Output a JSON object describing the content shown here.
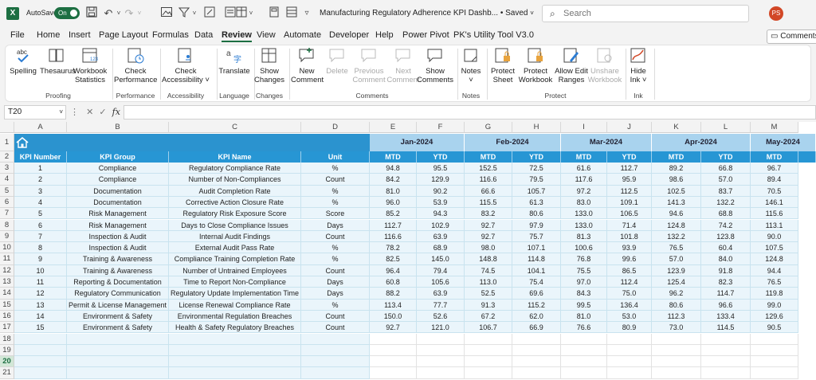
{
  "titlebar": {
    "autosave_label": "AutoSave",
    "autosave_state": "On",
    "doc_title": "Manufacturing Regulatory Adherence KPI Dashb...",
    "saved_state": "• Saved",
    "search_placeholder": "Search",
    "avatar_initials": "PS"
  },
  "menu": {
    "tabs": [
      "File",
      "Home",
      "Insert",
      "Page Layout",
      "Formulas",
      "Data",
      "Review",
      "View",
      "Automate",
      "Developer",
      "Help",
      "Power Pivot",
      "PK's Utility Tool V3.0"
    ],
    "active": "Review",
    "comments_label": "Comments"
  },
  "ribbon": {
    "buttons": {
      "spelling": "Spelling",
      "thesaurus": "Thesaurus",
      "workbook_statistics": [
        "Workbook",
        "Statistics"
      ],
      "check_performance": [
        "Check",
        "Performance"
      ],
      "check_accessibility": [
        "Check",
        "Accessibility ˅"
      ],
      "translate": "Translate",
      "show_changes": [
        "Show",
        "Changes"
      ],
      "new_comment": [
        "New",
        "Comment"
      ],
      "delete": "Delete",
      "previous_comment": [
        "Previous",
        "Comment"
      ],
      "next_comment": [
        "Next",
        "Comment"
      ],
      "show_comments": [
        "Show",
        "Comments"
      ],
      "notes": [
        "Notes",
        "˅"
      ],
      "protect_sheet": [
        "Protect",
        "Sheet"
      ],
      "protect_workbook": [
        "Protect",
        "Workbook"
      ],
      "allow_edit_ranges": [
        "Allow Edit",
        "Ranges"
      ],
      "unshare_workbook": [
        "Unshare",
        "Workbook"
      ],
      "hide_ink": [
        "Hide",
        "Ink ˅"
      ]
    },
    "groups": [
      "Proofing",
      "Performance",
      "Accessibility",
      "Language",
      "Changes",
      "Comments",
      "Notes",
      "Protect",
      "Ink"
    ]
  },
  "formula_bar": {
    "name_box": "T20",
    "fx": "fx",
    "value": ""
  },
  "sheet": {
    "columns": [
      "A",
      "B",
      "C",
      "D",
      "E",
      "F",
      "G",
      "H",
      "I",
      "J",
      "K",
      "L",
      "M"
    ],
    "row_numbers": [
      "1",
      "2",
      "3",
      "4",
      "5",
      "6",
      "7",
      "8",
      "9",
      "10",
      "11",
      "12",
      "13",
      "14",
      "15",
      "16",
      "17",
      "18",
      "19",
      "20",
      "21"
    ],
    "selected_row": "20",
    "months": [
      "Jan-2024",
      "Feb-2024",
      "Mar-2024",
      "Apr-2024",
      "May-2024"
    ],
    "headers": [
      "KPI Number",
      "KPI Group",
      "KPI Name",
      "Unit"
    ],
    "sub_headers": [
      "MTD",
      "YTD"
    ],
    "rows": [
      [
        "1",
        "Compliance",
        "Regulatory Compliance Rate",
        "%",
        "94.8",
        "95.5",
        "152.5",
        "72.5",
        "61.6",
        "112.7",
        "89.2",
        "66.8",
        "96.7"
      ],
      [
        "2",
        "Compliance",
        "Number of Non-Compliances",
        "Count",
        "84.2",
        "129.9",
        "116.6",
        "79.5",
        "117.6",
        "95.9",
        "98.6",
        "57.0",
        "89.4"
      ],
      [
        "3",
        "Documentation",
        "Audit Completion Rate",
        "%",
        "81.0",
        "90.2",
        "66.6",
        "105.7",
        "97.2",
        "112.5",
        "102.5",
        "83.7",
        "70.5"
      ],
      [
        "4",
        "Documentation",
        "Corrective Action Closure Rate",
        "%",
        "96.0",
        "53.9",
        "115.5",
        "61.3",
        "83.0",
        "109.1",
        "141.3",
        "132.2",
        "146.1"
      ],
      [
        "5",
        "Risk Management",
        "Regulatory Risk Exposure Score",
        "Score",
        "85.2",
        "94.3",
        "83.2",
        "80.6",
        "133.0",
        "106.5",
        "94.6",
        "68.8",
        "115.6"
      ],
      [
        "6",
        "Risk Management",
        "Days to Close Compliance Issues",
        "Days",
        "112.7",
        "102.9",
        "92.7",
        "97.9",
        "133.0",
        "71.4",
        "124.8",
        "74.2",
        "113.1"
      ],
      [
        "7",
        "Inspection & Audit",
        "Internal Audit Findings",
        "Count",
        "116.6",
        "63.9",
        "92.7",
        "75.7",
        "81.3",
        "101.8",
        "132.2",
        "123.8",
        "90.0"
      ],
      [
        "8",
        "Inspection & Audit",
        "External Audit Pass Rate",
        "%",
        "78.2",
        "68.9",
        "98.0",
        "107.1",
        "100.6",
        "93.9",
        "76.5",
        "60.4",
        "107.5"
      ],
      [
        "9",
        "Training & Awareness",
        "Compliance Training Completion Rate",
        "%",
        "82.5",
        "145.0",
        "148.8",
        "114.8",
        "76.8",
        "99.6",
        "57.0",
        "84.0",
        "124.8"
      ],
      [
        "10",
        "Training & Awareness",
        "Number of Untrained Employees",
        "Count",
        "96.4",
        "79.4",
        "74.5",
        "104.1",
        "75.5",
        "86.5",
        "123.9",
        "91.8",
        "94.4"
      ],
      [
        "11",
        "Reporting & Documentation",
        "Time to Report Non-Compliance",
        "Days",
        "60.8",
        "105.6",
        "113.0",
        "75.4",
        "97.0",
        "112.4",
        "125.4",
        "82.3",
        "76.5"
      ],
      [
        "12",
        "Regulatory Communication",
        "Regulatory Update Implementation Time",
        "Days",
        "88.2",
        "63.9",
        "52.5",
        "69.6",
        "84.3",
        "75.0",
        "96.2",
        "114.7",
        "119.8"
      ],
      [
        "13",
        "Permit & License Management",
        "License Renewal Compliance Rate",
        "%",
        "113.4",
        "77.7",
        "91.3",
        "115.2",
        "99.5",
        "136.4",
        "80.6",
        "96.6",
        "99.0"
      ],
      [
        "14",
        "Environment & Safety",
        "Environmental Regulation Breaches",
        "Count",
        "150.0",
        "52.6",
        "67.2",
        "62.0",
        "81.0",
        "53.0",
        "112.3",
        "133.4",
        "129.6"
      ],
      [
        "15",
        "Environment & Safety",
        "Health & Safety Regulatory Breaches",
        "Count",
        "92.7",
        "121.0",
        "106.7",
        "66.9",
        "76.6",
        "80.9",
        "73.0",
        "114.5",
        "90.5"
      ]
    ]
  },
  "colors": {
    "excel_green": "#1d6f42",
    "header_blue": "#2796d4",
    "month_blue": "#a9d3ee",
    "body_fill": "#eaf5fb"
  }
}
